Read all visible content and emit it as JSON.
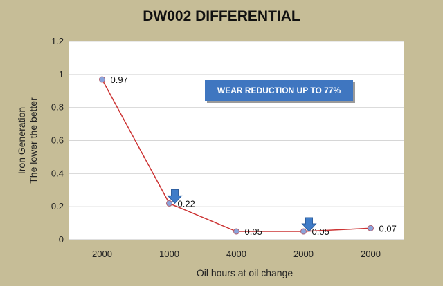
{
  "chart_data": {
    "type": "line",
    "title": "DW002 DIFFERENTIAL",
    "xlabel": "Oil hours at oil change",
    "ylabel_line1": "Iron Generation",
    "ylabel_line2": "The lower the better",
    "categories": [
      "2000",
      "1000",
      "4000",
      "2000",
      "2000"
    ],
    "values": [
      0.97,
      0.22,
      0.05,
      0.05,
      0.07
    ],
    "data_labels": [
      "0.97",
      "0.22",
      "0.05",
      "0.05",
      "0.07"
    ],
    "ylim": [
      0,
      1.2
    ],
    "yticks": [
      0,
      0.2,
      0.4,
      0.6,
      0.8,
      1,
      1.2
    ],
    "ytick_labels": [
      "0",
      "0.2",
      "0.4",
      "0.6",
      "0.8",
      "1",
      "1.2"
    ],
    "grid": true,
    "annotation": "WEAR REDUCTION UP TO 77%",
    "arrow_markers_at": [
      1,
      3
    ],
    "colors": {
      "line": "#cc3333",
      "marker": "#8aa4dc",
      "marker_edge": "#b06070",
      "plot_bg": "#ffffff",
      "page_bg": "#c6bd97",
      "grid": "#d6d6d6",
      "callout_fill": "#3f76c0",
      "arrow": "#3f7cc8"
    }
  }
}
